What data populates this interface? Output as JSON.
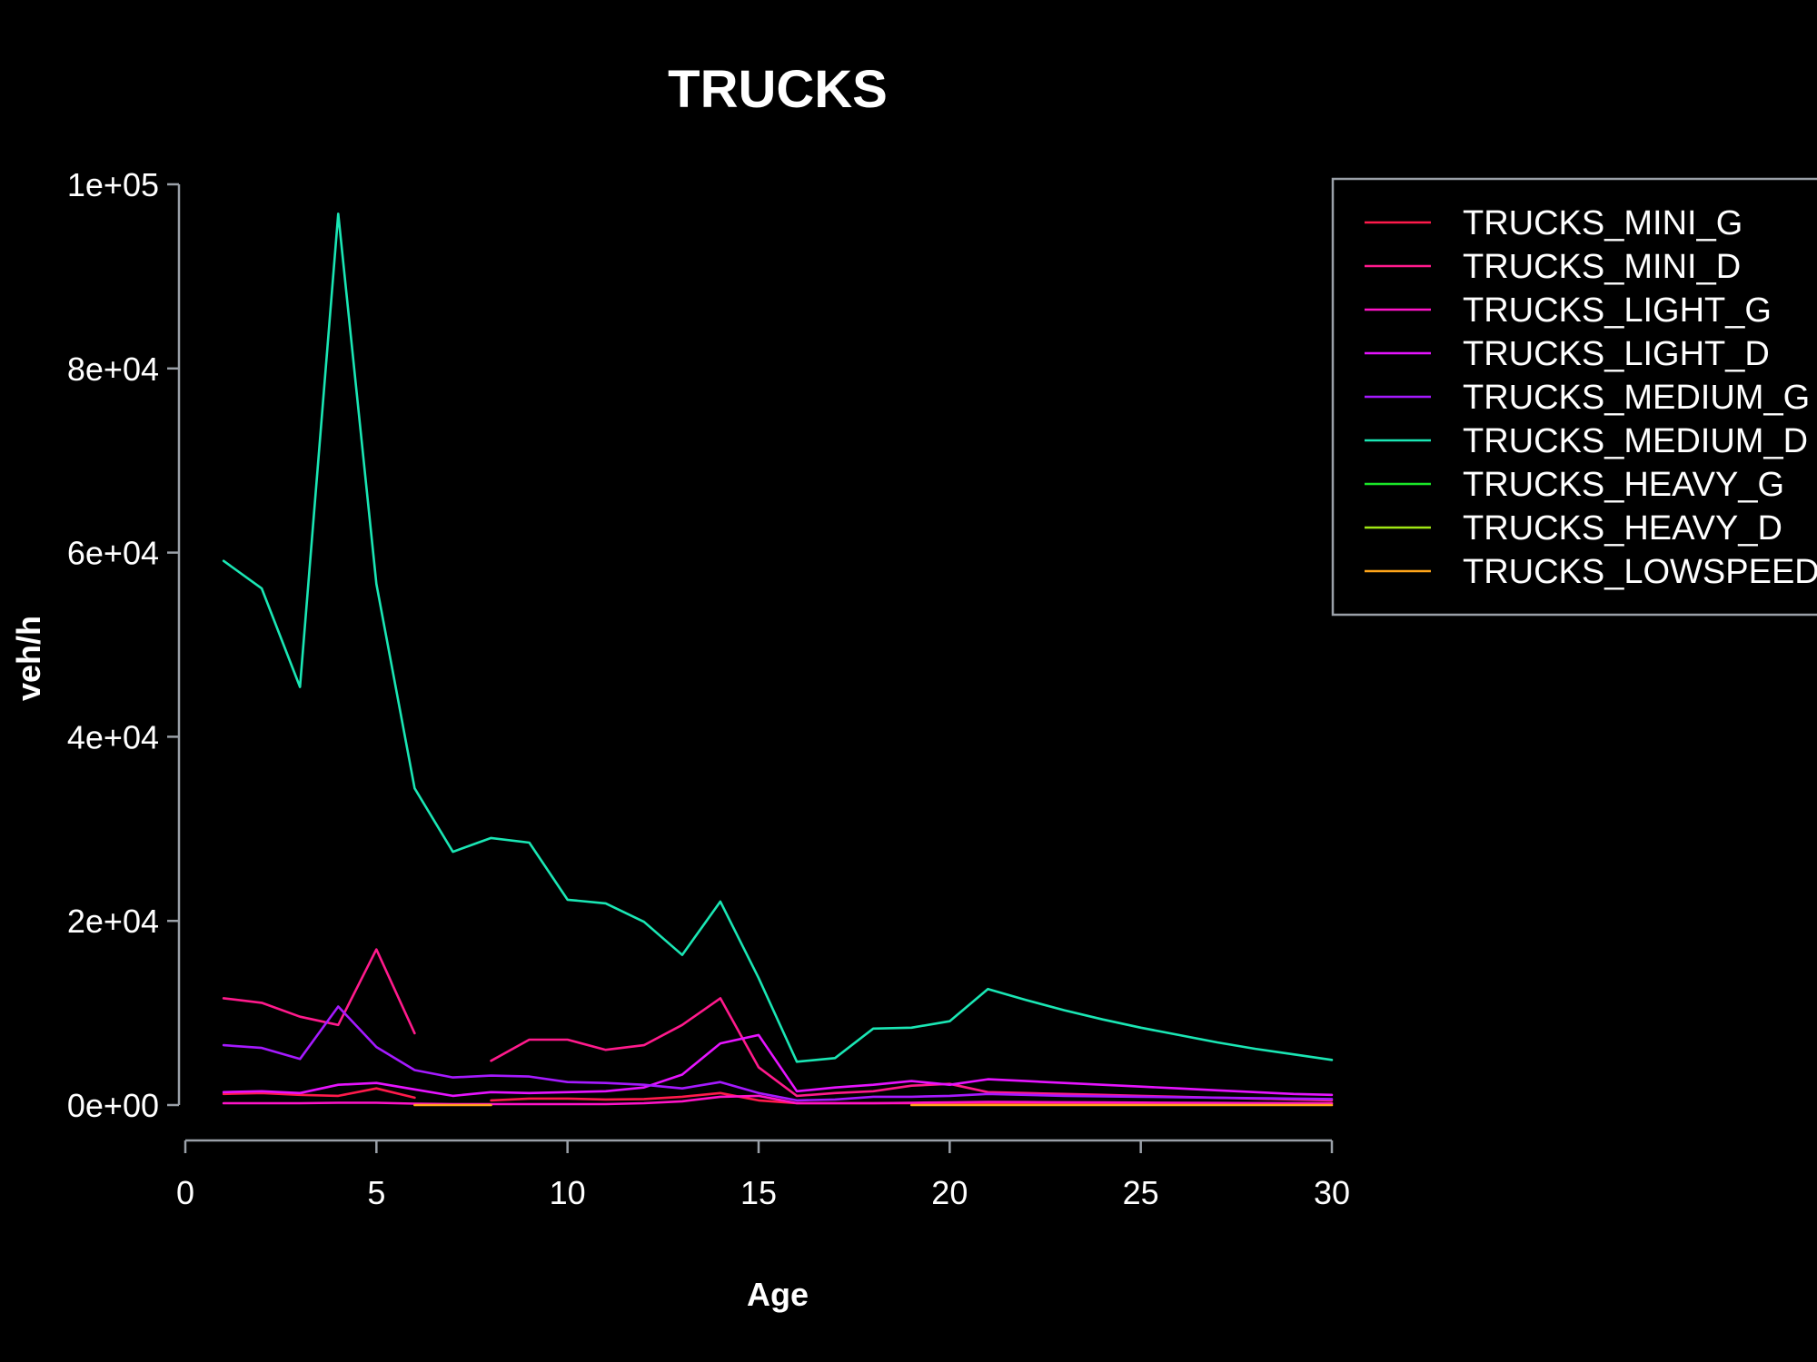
{
  "chart_data": {
    "type": "line",
    "title": "TRUCKS",
    "xlabel": "Age",
    "ylabel": "veh/h",
    "xlim": [
      0,
      30
    ],
    "ylim": [
      0,
      100000
    ],
    "x_ticks": [
      0,
      5,
      10,
      15,
      20,
      25,
      30
    ],
    "x_tick_labels": [
      "0",
      "5",
      "10",
      "15",
      "20",
      "25",
      "30"
    ],
    "y_ticks": [
      0,
      20000,
      40000,
      60000,
      80000,
      100000
    ],
    "y_tick_labels": [
      "0e+00",
      "2e+04",
      "4e+04",
      "6e+04",
      "8e+04",
      "1e+05"
    ],
    "grid": false,
    "legend_position": "top-right",
    "x": [
      1,
      2,
      3,
      4,
      5,
      6,
      7,
      8,
      9,
      10,
      11,
      12,
      13,
      14,
      15,
      16,
      17,
      18,
      19,
      20,
      21,
      22,
      23,
      24,
      25,
      26,
      27,
      28,
      29,
      30
    ],
    "series": [
      {
        "name": "TRUCKS_MINI_G",
        "color": "#ff1a4b",
        "values": [
          1200,
          1300,
          1100,
          1000,
          1800,
          800,
          null,
          500,
          700,
          700,
          600,
          650,
          900,
          1300,
          500,
          200,
          200,
          200,
          200,
          200,
          200,
          200,
          200,
          200,
          200,
          200,
          200,
          200,
          200,
          200
        ]
      },
      {
        "name": "TRUCKS_MINI_D",
        "color": "#ff1a8c",
        "values": [
          11600,
          11100,
          9600,
          8700,
          16900,
          7800,
          null,
          4800,
          7100,
          7100,
          6000,
          6500,
          8700,
          11600,
          4100,
          1000,
          1300,
          1500,
          2100,
          2300,
          1400,
          1300,
          1200,
          1100,
          1000,
          900,
          800,
          700,
          600,
          500
        ]
      },
      {
        "name": "TRUCKS_LIGHT_G",
        "color": "#ff14c8",
        "values": [
          200,
          200,
          200,
          250,
          250,
          150,
          100,
          100,
          100,
          100,
          100,
          200,
          400,
          900,
          1000,
          200,
          200,
          200,
          250,
          300,
          350,
          330,
          310,
          290,
          270,
          250,
          230,
          210,
          190,
          170
        ]
      },
      {
        "name": "TRUCKS_LIGHT_D",
        "color": "#e614ff",
        "values": [
          1400,
          1500,
          1300,
          2200,
          2400,
          1700,
          1000,
          1400,
          1300,
          1400,
          1500,
          1900,
          3300,
          6700,
          7600,
          1500,
          1900,
          2200,
          2600,
          2200,
          2800,
          2600,
          2400,
          2200,
          2000,
          1800,
          1600,
          1400,
          1200,
          1100
        ]
      },
      {
        "name": "TRUCKS_MEDIUM_G",
        "color": "#a51aff",
        "values": [
          6500,
          6200,
          5000,
          10700,
          6300,
          3800,
          3000,
          3200,
          3100,
          2500,
          2400,
          2200,
          1800,
          2500,
          1300,
          500,
          600,
          900,
          900,
          1000,
          1200,
          1100,
          1000,
          950,
          900,
          850,
          800,
          750,
          700,
          650
        ]
      },
      {
        "name": "TRUCKS_MEDIUM_D",
        "color": "#1ae6b4",
        "values": [
          59100,
          56100,
          45400,
          96800,
          56600,
          34400,
          27500,
          29000,
          28500,
          22300,
          21900,
          19900,
          16300,
          22100,
          13800,
          4700,
          5100,
          8300,
          8400,
          9100,
          12600,
          11400,
          10300,
          9300,
          8400,
          7600,
          6800,
          6100,
          5500,
          4900
        ]
      },
      {
        "name": "TRUCKS_HEAVY_G",
        "color": "#1ae628",
        "values": [
          null,
          null,
          null,
          null,
          null,
          null,
          null,
          null,
          null,
          null,
          null,
          null,
          null,
          null,
          null,
          null,
          null,
          null,
          null,
          null,
          null,
          null,
          null,
          null,
          null,
          null,
          null,
          null,
          null,
          null
        ]
      },
      {
        "name": "TRUCKS_HEAVY_D",
        "color": "#a0e614",
        "values": [
          null,
          null,
          null,
          null,
          null,
          null,
          null,
          null,
          null,
          null,
          null,
          null,
          null,
          null,
          null,
          null,
          null,
          null,
          null,
          null,
          null,
          null,
          null,
          null,
          null,
          null,
          null,
          null,
          null,
          null
        ]
      },
      {
        "name": "TRUCKS_LOWSPEED",
        "color": "#ffa51a",
        "values": [
          null,
          null,
          null,
          null,
          null,
          0,
          0,
          0,
          null,
          null,
          null,
          null,
          null,
          null,
          null,
          null,
          null,
          null,
          0,
          0,
          0,
          0,
          0,
          0,
          0,
          0,
          0,
          0,
          0,
          0
        ]
      }
    ]
  }
}
